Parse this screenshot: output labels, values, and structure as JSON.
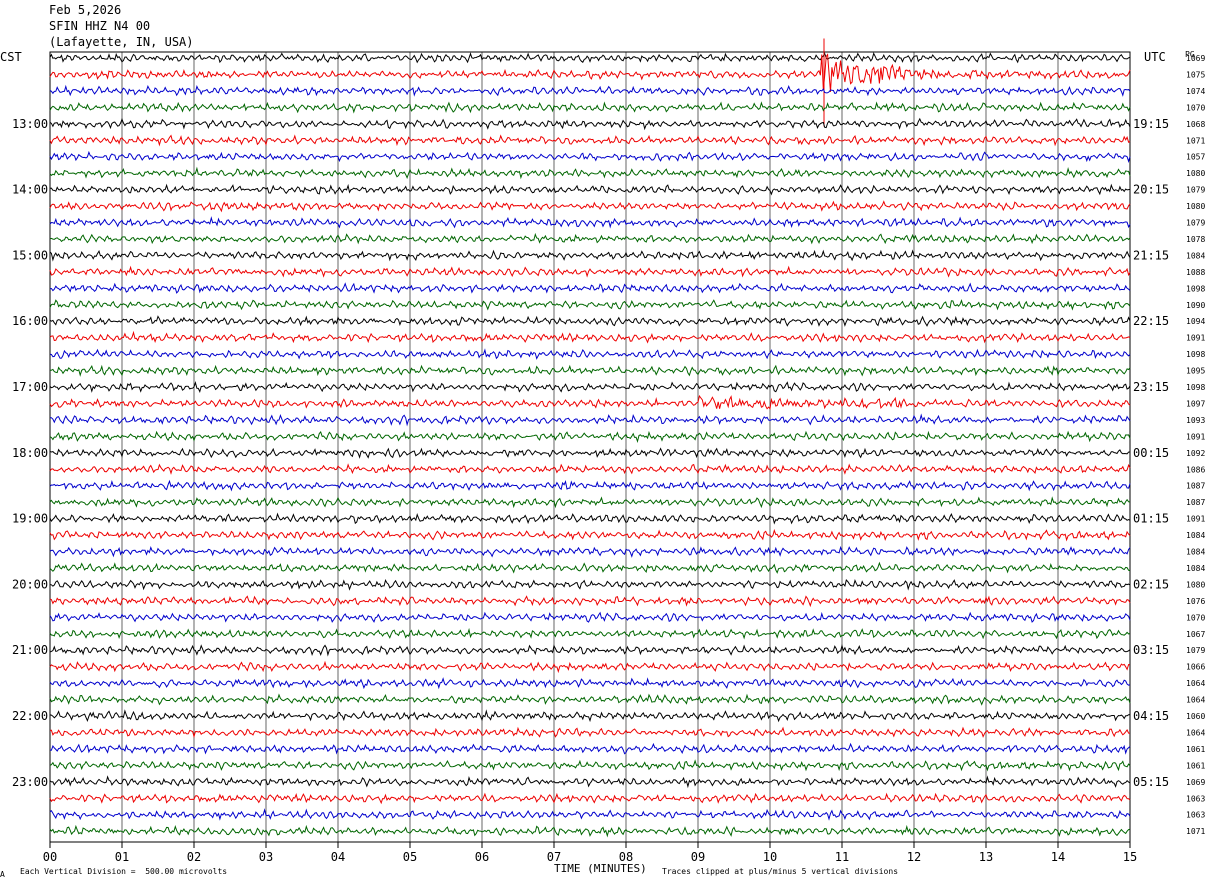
{
  "header": {
    "date": "Feb 5,2026",
    "station": "SFIN HHZ N4 00",
    "location": "(Lafayette, IN, USA)"
  },
  "left_axis_label": "CST",
  "right_axis_label": "UTC",
  "rms_label": "PG",
  "footer": {
    "scale_note": "Each Vertical Division =  500.00 microvolts",
    "xlabel": "TIME (MINUTES)",
    "clip_note": "Traces clipped at plus/minus 5 vertical divisions",
    "corner_mark": "A"
  },
  "colors": {
    "trace_cycle": [
      "#000000",
      "#ee0000",
      "#0000cc",
      "#006600"
    ],
    "grid": "#000000"
  },
  "chart_data": {
    "type": "line",
    "title": "SFIN HHZ N4 00 (Lafayette, IN, USA) Feb 5,2026",
    "xlabel": "TIME (MINUTES)",
    "xlim": [
      0,
      15
    ],
    "x_ticks": [
      "00",
      "01",
      "02",
      "03",
      "04",
      "05",
      "06",
      "07",
      "08",
      "09",
      "10",
      "11",
      "12",
      "13",
      "14",
      "15"
    ],
    "row_count": 48,
    "minutes_per_row": 15,
    "cst_hour_labels": [
      {
        "row": 4,
        "text": "13:00"
      },
      {
        "row": 8,
        "text": "14:00"
      },
      {
        "row": 12,
        "text": "15:00"
      },
      {
        "row": 16,
        "text": "16:00"
      },
      {
        "row": 20,
        "text": "17:00"
      },
      {
        "row": 24,
        "text": "18:00"
      },
      {
        "row": 28,
        "text": "19:00"
      },
      {
        "row": 32,
        "text": "20:00"
      },
      {
        "row": 36,
        "text": "21:00"
      },
      {
        "row": 40,
        "text": "22:00"
      },
      {
        "row": 44,
        "text": "23:00"
      }
    ],
    "utc_labels": [
      {
        "row": 4,
        "text": "19:15"
      },
      {
        "row": 8,
        "text": "20:15"
      },
      {
        "row": 12,
        "text": "21:15"
      },
      {
        "row": 16,
        "text": "22:15"
      },
      {
        "row": 20,
        "text": "23:15"
      },
      {
        "row": 24,
        "text": "00:15"
      },
      {
        "row": 28,
        "text": "01:15"
      },
      {
        "row": 32,
        "text": "02:15"
      },
      {
        "row": 36,
        "text": "03:15"
      },
      {
        "row": 40,
        "text": "04:15"
      },
      {
        "row": 44,
        "text": "05:15"
      }
    ],
    "row_values": [
      "1069",
      "1075",
      "1074",
      "1070",
      "1068",
      "1071",
      "1057",
      "1080",
      "1079",
      "1080",
      "1079",
      "1078",
      "1084",
      "1088",
      "1098",
      "1090",
      "1094",
      "1091",
      "1098",
      "1095",
      "1098",
      "1097",
      "1093",
      "1091",
      "1092",
      "1086",
      "1087",
      "1087",
      "1091",
      "1084",
      "1084",
      "1084",
      "1080",
      "1076",
      "1070",
      "1067",
      "1079",
      "1066",
      "1064",
      "1064",
      "1060",
      "1064",
      "1061",
      "1061",
      "1069",
      "1063",
      "1063",
      "1071"
    ],
    "noise_amplitude_divisions": 0.35,
    "events": [
      {
        "row": 1,
        "start_min": 10.7,
        "end_min": 15.0,
        "peak_divisions": 5,
        "note": "clipped"
      },
      {
        "row": 21,
        "start_min": 9.0,
        "end_min": 12.0,
        "peak_divisions": 0.8
      }
    ],
    "scale": "Each Vertical Division = 500.00 microvolts",
    "clip": "plus/minus 5 vertical divisions"
  }
}
